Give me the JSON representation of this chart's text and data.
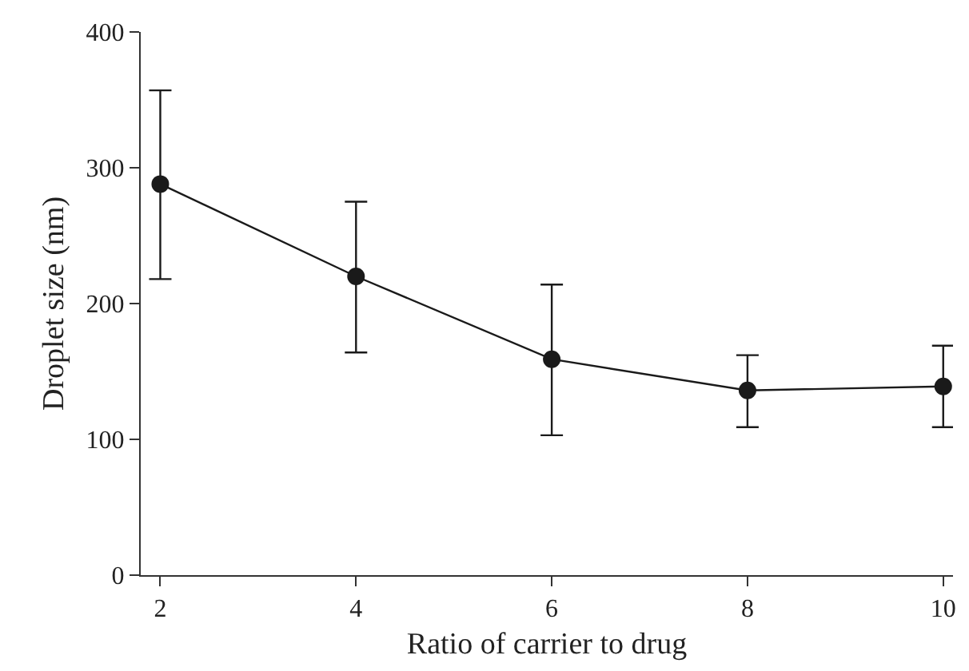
{
  "chart_data": {
    "type": "line",
    "xlabel": "Ratio of carrier to drug",
    "ylabel": "Droplet size (nm)",
    "x": [
      2,
      4,
      6,
      8,
      10
    ],
    "values": [
      288,
      220,
      159,
      136,
      139
    ],
    "errors": [
      [
        218,
        357
      ],
      [
        164,
        275
      ],
      [
        103,
        214
      ],
      [
        109,
        162
      ],
      [
        109,
        169
      ]
    ],
    "color": "#1a1a1a",
    "marker": "circle",
    "line_style": "solid",
    "xlim": [
      1.8,
      10.1
    ],
    "xticks": [
      2,
      4,
      6,
      8,
      10
    ],
    "ylim": [
      0,
      400
    ],
    "yticks": [
      0,
      100,
      200,
      300,
      400
    ]
  }
}
